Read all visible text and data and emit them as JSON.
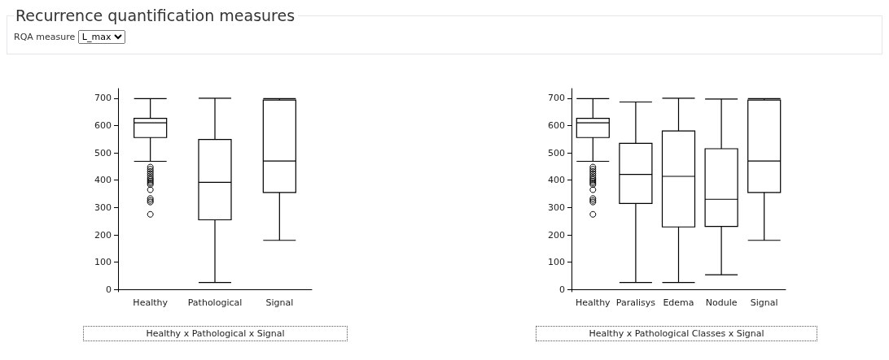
{
  "chart_data": [
    {
      "type": "other",
      "title": "Recurrence quantification measures",
      "annotations": [
        "RQA measure",
        "L_max"
      ]
    },
    {
      "type": "box",
      "categories": [
        "Healthy",
        "Pathological",
        "Signal"
      ],
      "ylim": [
        -8,
        735
      ],
      "yticks": [
        0,
        100,
        200,
        300,
        400,
        500,
        600,
        700
      ],
      "grid": false,
      "annotations": [
        "Healthy x Pathological x Signal"
      ],
      "series": [
        {
          "color": "#000000",
          "boxes": [
            {
              "low": 469,
              "q1": 556,
              "median": 610,
              "q3": 626,
              "high": 698,
              "outliers": [
                448,
                440,
                432,
                424,
                416,
                408,
                402,
                396,
                390,
                384,
                365,
                333,
                326,
                320,
                275
              ]
            },
            {
              "low": 26,
              "q1": 255,
              "median": 392,
              "q3": 549,
              "high": 700
            },
            {
              "low": 180,
              "q1": 355,
              "median": 470,
              "q3": 693,
              "high": 698
            }
          ]
        }
      ]
    },
    {
      "type": "box",
      "categories": [
        "Healthy",
        "Paralisys",
        "Edema",
        "Nodule",
        "Signal"
      ],
      "ylim": [
        -8,
        735
      ],
      "yticks": [
        0,
        100,
        200,
        300,
        400,
        500,
        600,
        700
      ],
      "grid": false,
      "annotations": [
        "Healthy x Pathological Classes x Signal"
      ],
      "series": [
        {
          "color": "#000000",
          "boxes": [
            {
              "low": 469,
              "q1": 556,
              "median": 610,
              "q3": 626,
              "high": 698,
              "outliers": [
                448,
                440,
                432,
                424,
                416,
                408,
                402,
                396,
                390,
                384,
                365,
                333,
                326,
                320,
                275
              ]
            },
            {
              "low": 26,
              "q1": 315,
              "median": 421,
              "q3": 535,
              "high": 686
            },
            {
              "low": 26,
              "q1": 229,
              "median": 414,
              "q3": 580,
              "high": 700
            },
            {
              "low": 54,
              "q1": 231,
              "median": 330,
              "q3": 515,
              "high": 697
            },
            {
              "low": 180,
              "q1": 355,
              "median": 470,
              "q3": 693,
              "high": 698
            }
          ]
        }
      ]
    }
  ]
}
